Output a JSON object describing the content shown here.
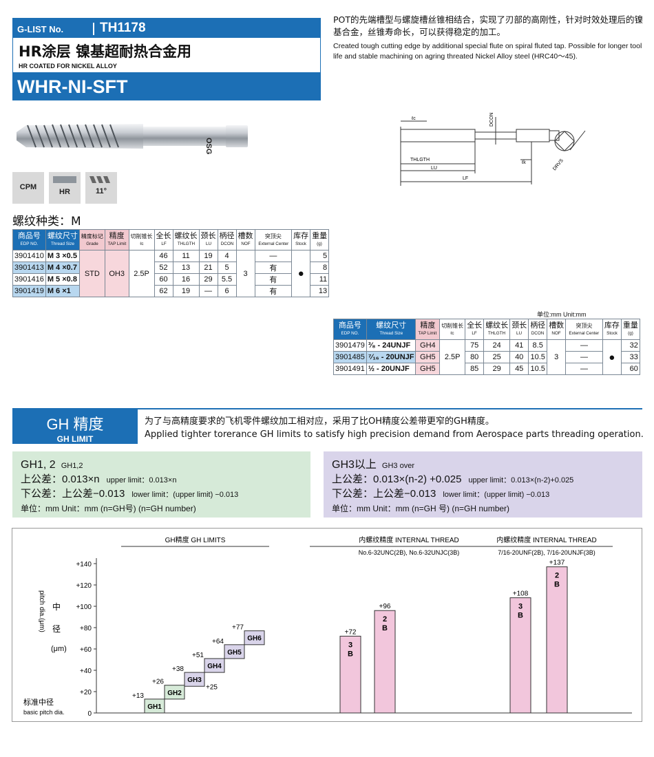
{
  "header": {
    "glist_label": "G-LIST No.",
    "glist_no": "TH1178",
    "title_cn": "HR涂层 镍基超耐热合金用",
    "title_en": "HR COATED FOR NICKEL ALLOY",
    "model": "WHR-NI-SFT"
  },
  "description": {
    "cn": "POT的先端槽型与螺旋槽丝锥相结合，实现了刃部的高刚性，针对时效处理后的镍基合金，丝锥寿命长，可以获得稳定的加工。",
    "en": "Created tough cutting edge by additional special flute on spiral fluted tap. Possible for longer tool life and stable machining on agring threated Nickel Alloy steel (HRC40～45)."
  },
  "tool_logo": "OSG",
  "badges": [
    {
      "label": "CPM"
    },
    {
      "label": "HR"
    },
    {
      "label": "11°"
    }
  ],
  "drawing": {
    "labels": [
      "ℓc",
      "DCON",
      "THLGTH",
      "LU",
      "LF",
      "ℓk",
      "DRVS"
    ]
  },
  "subtitle": "螺纹种类：M",
  "table_m": {
    "headers": [
      {
        "cn": "商品号",
        "en": "EDP NO."
      },
      {
        "cn": "螺纹尺寸",
        "en": "Thread Size"
      },
      {
        "cn": "精度标记",
        "en": "Grade"
      },
      {
        "cn": "精度",
        "en": "TAP Limit"
      },
      {
        "cn": "切削锥长",
        "en": "ℓc"
      },
      {
        "cn": "全长",
        "en": "LF"
      },
      {
        "cn": "螺纹长",
        "en": "THLGTH"
      },
      {
        "cn": "颈长",
        "en": "LU"
      },
      {
        "cn": "柄径",
        "en": "DCON"
      },
      {
        "cn": "槽数",
        "en": "NOF"
      },
      {
        "cn": "突顶尖",
        "en": "External Center"
      },
      {
        "cn": "库存",
        "en": "Stock"
      },
      {
        "cn": "重量",
        "en": "(g)"
      }
    ],
    "grade": "STD",
    "tap_limit": "OH3",
    "lc": "2.5P",
    "nof": "3",
    "stock": "●",
    "rows": [
      {
        "edp": "3901410",
        "size": "M 3 ×0.5",
        "lf": "46",
        "thlgth": "11",
        "lu": "19",
        "dcon": "4",
        "ext": "—",
        "weight": "5"
      },
      {
        "edp": "3901413",
        "size": "M 4 ×0.7",
        "lf": "52",
        "thlgth": "13",
        "lu": "21",
        "dcon": "5",
        "ext": "有",
        "weight": "8"
      },
      {
        "edp": "3901416",
        "size": "M 5 ×0.8",
        "lf": "60",
        "thlgth": "16",
        "lu": "29",
        "dcon": "5.5",
        "ext": "有",
        "weight": "11"
      },
      {
        "edp": "3901419",
        "size": "M 6 ×1",
        "lf": "62",
        "thlgth": "19",
        "lu": "—",
        "dcon": "6",
        "ext": "有",
        "weight": "13"
      }
    ]
  },
  "unit_note": "单位:mm  Unit:mm",
  "table_unjf": {
    "headers": [
      {
        "cn": "商品号",
        "en": "EDP NO."
      },
      {
        "cn": "螺纹尺寸",
        "en": "Thread Size"
      },
      {
        "cn": "精度",
        "en": "TAP Limit"
      },
      {
        "cn": "切削锥长",
        "en": "ℓc"
      },
      {
        "cn": "全长",
        "en": "LF"
      },
      {
        "cn": "螺纹长",
        "en": "THLGTH"
      },
      {
        "cn": "颈长",
        "en": "LU"
      },
      {
        "cn": "柄径",
        "en": "DCON"
      },
      {
        "cn": "槽数",
        "en": "NOF"
      },
      {
        "cn": "突顶尖",
        "en": "External Center"
      },
      {
        "cn": "库存",
        "en": "Stock"
      },
      {
        "cn": "重量",
        "en": "(g)"
      }
    ],
    "lc": "2.5P",
    "nof": "3",
    "stock": "●",
    "rows": [
      {
        "edp": "3901479",
        "size": "³⁄₈ - 24UNJF",
        "limit": "GH4",
        "lf": "75",
        "thlgth": "24",
        "lu": "41",
        "dcon": "8.5",
        "ext": "—",
        "weight": "32"
      },
      {
        "edp": "3901485",
        "size": "⁷⁄₁₆ - 20UNJF",
        "limit": "GH5",
        "lf": "80",
        "thlgth": "25",
        "lu": "40",
        "dcon": "10.5",
        "ext": "—",
        "weight": "33"
      },
      {
        "edp": "3901491",
        "size": "½ - 20UNJF",
        "limit": "GH5",
        "lf": "85",
        "thlgth": "29",
        "lu": "45",
        "dcon": "10.5",
        "ext": "—",
        "weight": "60"
      }
    ]
  },
  "gh": {
    "title_cn": "GH 精度",
    "title_en": "GH LIMIT",
    "desc_cn": "为了与高精度要求的飞机零件螺纹加工相对应，采用了比OH精度公差带更窄的GH精度。",
    "desc_en": "Applied tighter torerance GH limits to satisfy high precision demand from Aerospace parts threading operation.",
    "box1": {
      "title": "GH1, 2",
      "title_small": "GH1,2",
      "upper": "上公差：0.013×n",
      "upper_en": "upper limit：0.013×n",
      "lower": "下公差：上公差−0.013",
      "lower_en": "lower limit：(upper limit) −0.013",
      "unit": "单位：mm  Unit：mm       (n=GH号)  (n=GH number)",
      "bg": "#d6ead8"
    },
    "box2": {
      "title": "GH3以上",
      "title_small": "GH3 over",
      "upper": "上公差：0.013×(n-2) +0.025",
      "upper_en": "upper limit：0.013×(n-2)+0.025",
      "lower": "下公差：上公差−0.013",
      "lower_en": "lower limit：(upper limit) −0.013",
      "unit": "单位：mm  Unit：mm       (n=GH 号)  (n=GH number)",
      "bg": "#d9d4ea"
    }
  },
  "chart_data": {
    "type": "bar",
    "ylabel": "中径(μm)",
    "ylabel_rot": "pitch dia.(μm)",
    "ylim": [
      0,
      140
    ],
    "yticks": [
      "0",
      "+20",
      "+40",
      "+60",
      "+80",
      "+100",
      "+120",
      "+140"
    ],
    "baseline_label": "标准中径",
    "baseline_label_en": "basic pitch dia.",
    "groups": [
      {
        "title": "GH精度",
        "title_en": "GH LIMITS",
        "subtitle": ""
      },
      {
        "title": "内螺纹精度",
        "title_en": "INTERNAL THREAD",
        "subtitle": "No.6-32UNC(2B), No.6-32UNJC(3B)"
      },
      {
        "title": "内螺纹精度",
        "title_en": "INTERNAL THREAD",
        "subtitle": "7/16-20UNF(2B), 7/16-20UNJF(3B)"
      }
    ],
    "gh_steps": [
      {
        "name": "GH1",
        "lower": 0,
        "upper": 13,
        "upper_label": "+13",
        "lower_label": ""
      },
      {
        "name": "GH2",
        "lower": 13,
        "upper": 26,
        "upper_label": "+26",
        "lower_label": ""
      },
      {
        "name": "GH3",
        "lower": 25,
        "upper": 38,
        "upper_label": "+38",
        "lower_label": "+25"
      },
      {
        "name": "GH4",
        "lower": 38,
        "upper": 51,
        "upper_label": "+51",
        "lower_label": ""
      },
      {
        "name": "GH5",
        "lower": 51,
        "upper": 64,
        "upper_label": "+64",
        "lower_label": ""
      },
      {
        "name": "GH6",
        "lower": 64,
        "upper": 77,
        "upper_label": "+77",
        "lower_label": ""
      }
    ],
    "thread_bars": [
      {
        "group": 1,
        "name": "3B",
        "value": 72,
        "label": "+72"
      },
      {
        "group": 1,
        "name": "2B",
        "value": 96,
        "label": "+96"
      },
      {
        "group": 2,
        "name": "3B",
        "value": 108,
        "label": "+108"
      },
      {
        "group": 2,
        "name": "2B",
        "value": 137,
        "label": "+137"
      }
    ],
    "colors": {
      "gh1": "#d6ead8",
      "gh2": "#d6ead8",
      "gh3": "#d9d4ea",
      "thread": "#f2c6dc"
    }
  }
}
